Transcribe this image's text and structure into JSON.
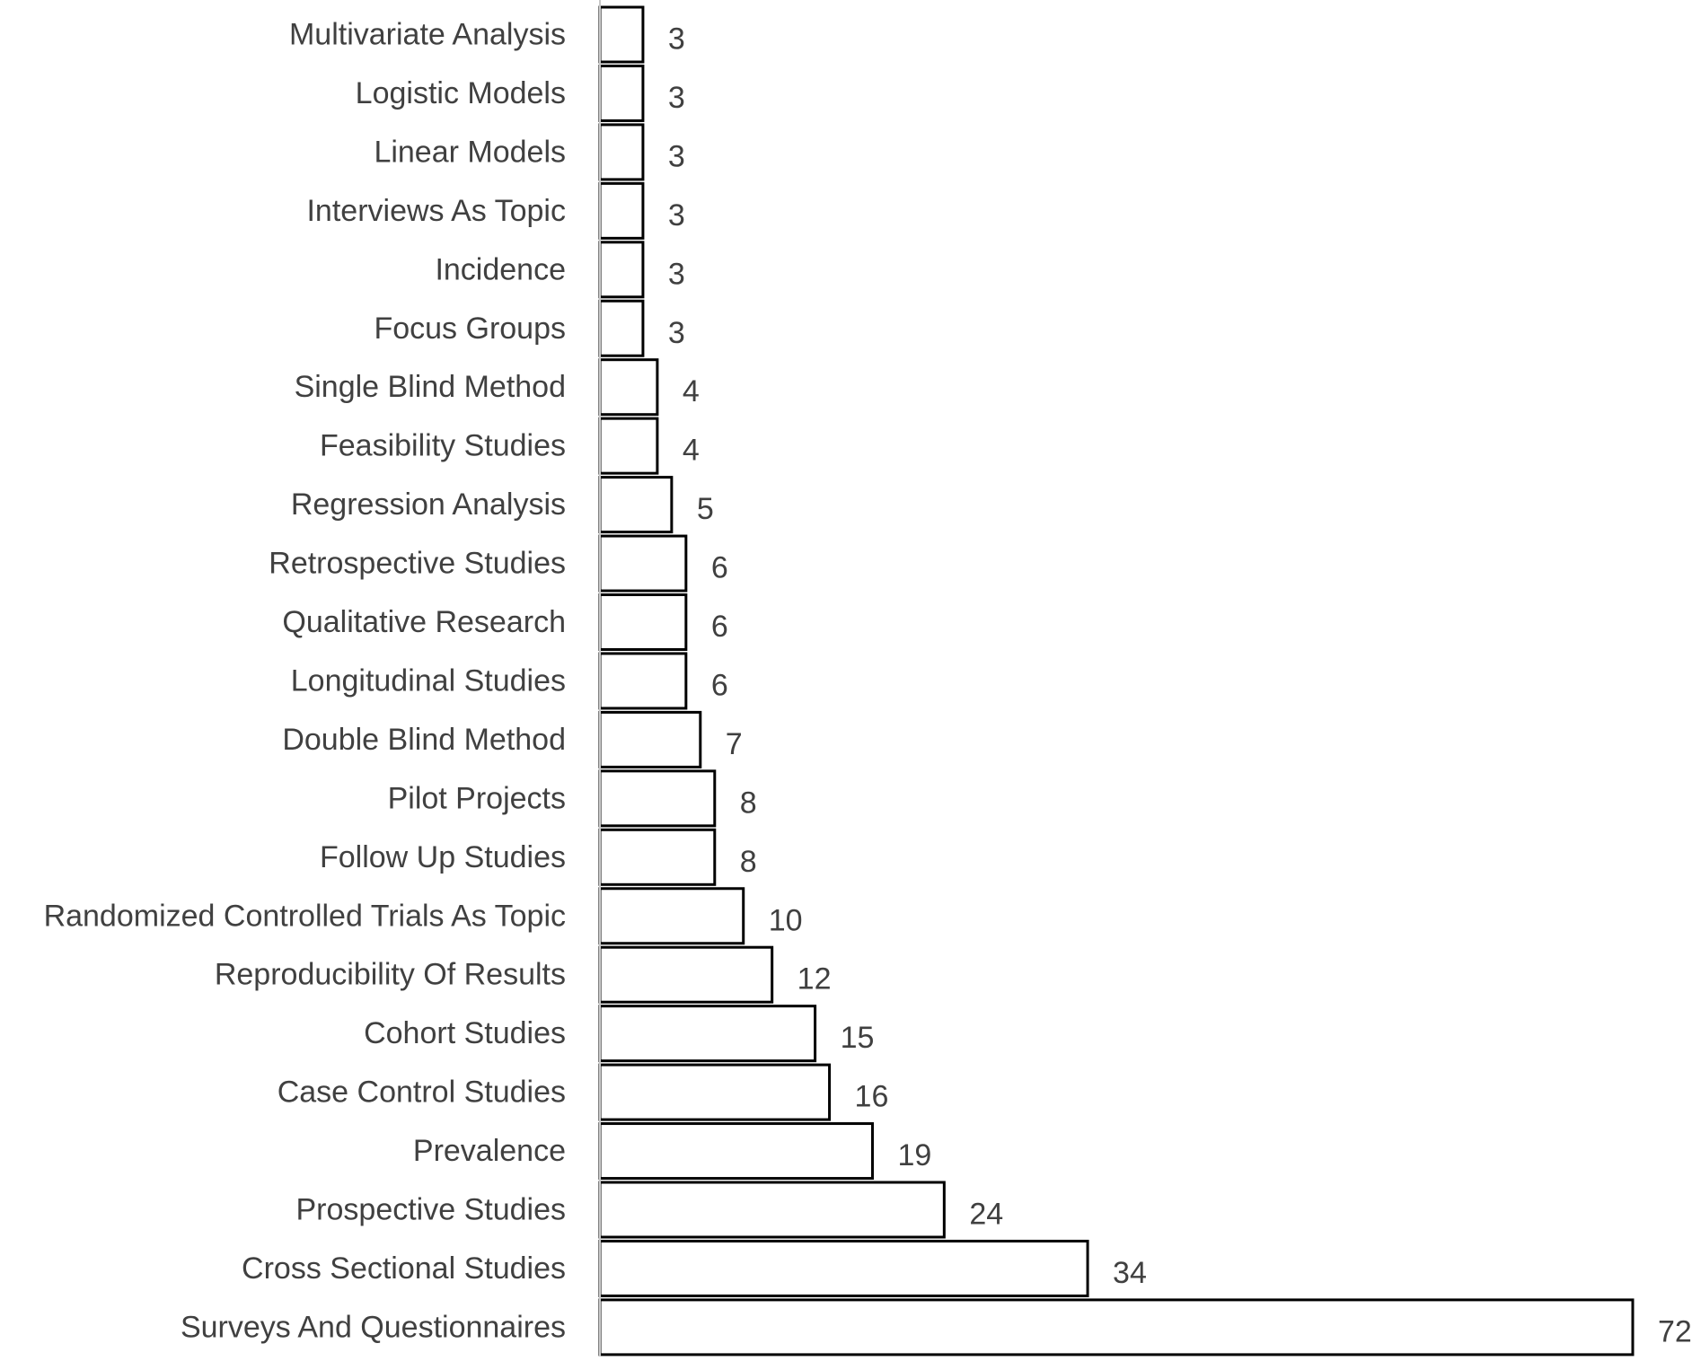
{
  "chart_data": {
    "type": "bar",
    "orientation": "horizontal",
    "title": "",
    "xlabel": "",
    "ylabel": "",
    "categories": [
      "Multivariate Analysis",
      "Logistic Models",
      "Linear Models",
      "Interviews As Topic",
      "Incidence",
      "Focus Groups",
      "Single Blind Method",
      "Feasibility Studies",
      "Regression Analysis",
      "Retrospective Studies",
      "Qualitative Research",
      "Longitudinal Studies",
      "Double Blind Method",
      "Pilot Projects",
      "Follow Up Studies",
      "Randomized Controlled Trials As Topic",
      "Reproducibility Of Results",
      "Cohort Studies",
      "Case Control Studies",
      "Prevalence",
      "Prospective Studies",
      "Cross Sectional Studies",
      "Surveys And Questionnaires"
    ],
    "values": [
      3,
      3,
      3,
      3,
      3,
      3,
      4,
      4,
      5,
      6,
      6,
      6,
      7,
      8,
      8,
      10,
      12,
      15,
      16,
      19,
      24,
      34,
      72
    ],
    "xlim": [
      0,
      72
    ],
    "data_labels": true,
    "grid": false,
    "legend": "none",
    "colors": {
      "bar_fill": "#ffffff",
      "bar_stroke": "#000000",
      "text": "#404040",
      "axis": "#c8c8c8"
    }
  }
}
